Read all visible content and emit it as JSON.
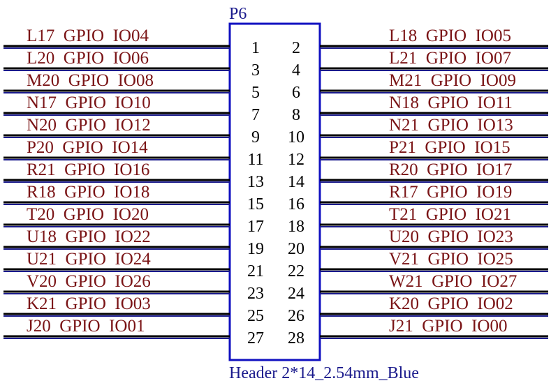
{
  "component": {
    "reference": "P6",
    "value": "Header 2*14_2.54mm_Blue",
    "body_color": "#1010c0",
    "wire_color": "#000000",
    "net_label_color": "#7a1416",
    "pin_number_color": "#000000",
    "text_color": "#1a1a8c"
  },
  "pins": [
    {
      "left_number": "1",
      "right_number": "2",
      "left_net": "L17  GPIO  IO04",
      "right_net": "L18  GPIO  IO05"
    },
    {
      "left_number": "3",
      "right_number": "4",
      "left_net": "L20  GPIO  IO06",
      "right_net": "L21  GPIO  IO07"
    },
    {
      "left_number": "5",
      "right_number": "6",
      "left_net": "M20  GPIO  IO08",
      "right_net": "M21  GPIO  IO09"
    },
    {
      "left_number": "7",
      "right_number": "8",
      "left_net": "N17  GPIO  IO10",
      "right_net": "N18  GPIO  IO11"
    },
    {
      "left_number": "9",
      "right_number": "10",
      "left_net": "N20  GPIO  IO12",
      "right_net": "N21  GPIO  IO13"
    },
    {
      "left_number": "11",
      "right_number": "12",
      "left_net": "P20  GPIO  IO14",
      "right_net": "P21  GPIO  IO15"
    },
    {
      "left_number": "13",
      "right_number": "14",
      "left_net": "R21  GPIO  IO16",
      "right_net": "R20  GPIO  IO17"
    },
    {
      "left_number": "15",
      "right_number": "16",
      "left_net": "R18  GPIO  IO18",
      "right_net": "R17  GPIO  IO19"
    },
    {
      "left_number": "17",
      "right_number": "18",
      "left_net": "T20  GPIO  IO20",
      "right_net": "T21  GPIO  IO21"
    },
    {
      "left_number": "19",
      "right_number": "20",
      "left_net": "U18  GPIO  IO22",
      "right_net": "U20  GPIO  IO23"
    },
    {
      "left_number": "21",
      "right_number": "22",
      "left_net": "U21  GPIO  IO24",
      "right_net": "V21  GPIO  IO25"
    },
    {
      "left_number": "23",
      "right_number": "24",
      "left_net": "V20  GPIO  IO26",
      "right_net": "W21  GPIO  IO27"
    },
    {
      "left_number": "25",
      "right_number": "26",
      "left_net": "K21  GPIO  IO03",
      "right_net": "K20  GPIO  IO02"
    },
    {
      "left_number": "27",
      "right_number": "28",
      "left_net": "J20  GPIO  IO01",
      "right_net": "J21  GPIO  IO00"
    }
  ]
}
